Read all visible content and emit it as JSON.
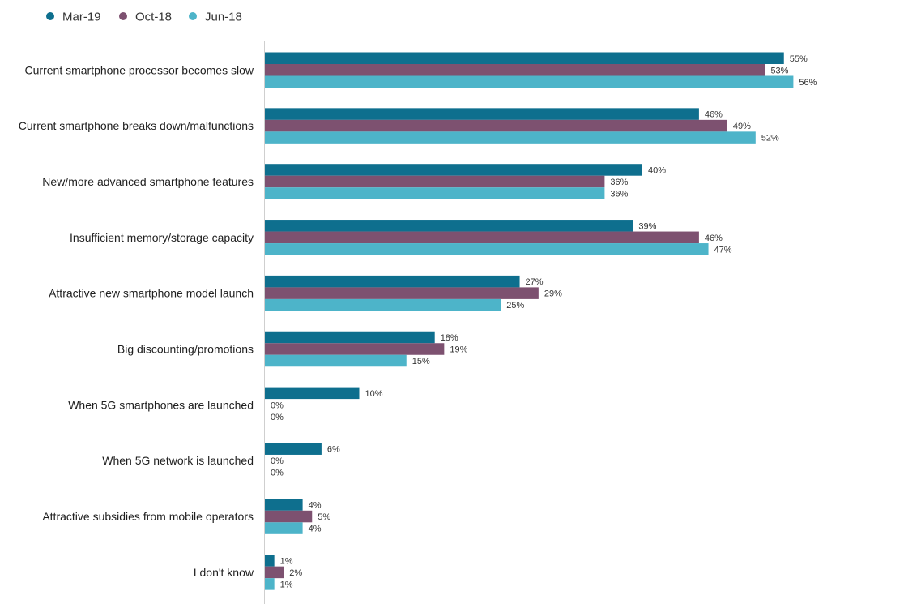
{
  "chart_data": {
    "type": "bar",
    "orientation": "horizontal",
    "title": "",
    "xlabel": "",
    "ylabel": "",
    "xlim": [
      0,
      100
    ],
    "grid": false,
    "legend_position": "top-left",
    "value_suffix": "%",
    "categories": [
      "Current smartphone processor becomes slow",
      "Current smartphone breaks down/malfunctions",
      "New/more advanced smartphone features",
      "Insufficient memory/storage capacity",
      "Attractive new smartphone model launch",
      "Big discounting/promotions",
      "When 5G smartphones are launched",
      "When 5G network is launched",
      "Attractive subsidies from mobile operators",
      "I don't know"
    ],
    "series": [
      {
        "name": "Mar-19",
        "color": "#0e6f8e",
        "values": [
          55,
          46,
          40,
          39,
          27,
          18,
          10,
          6,
          4,
          1
        ]
      },
      {
        "name": "Oct-18",
        "color": "#7d5170",
        "values": [
          53,
          49,
          36,
          46,
          29,
          19,
          0,
          0,
          5,
          2
        ]
      },
      {
        "name": "Jun-18",
        "color": "#4db4c9",
        "values": [
          56,
          52,
          36,
          47,
          25,
          15,
          0,
          0,
          4,
          1
        ]
      }
    ]
  }
}
